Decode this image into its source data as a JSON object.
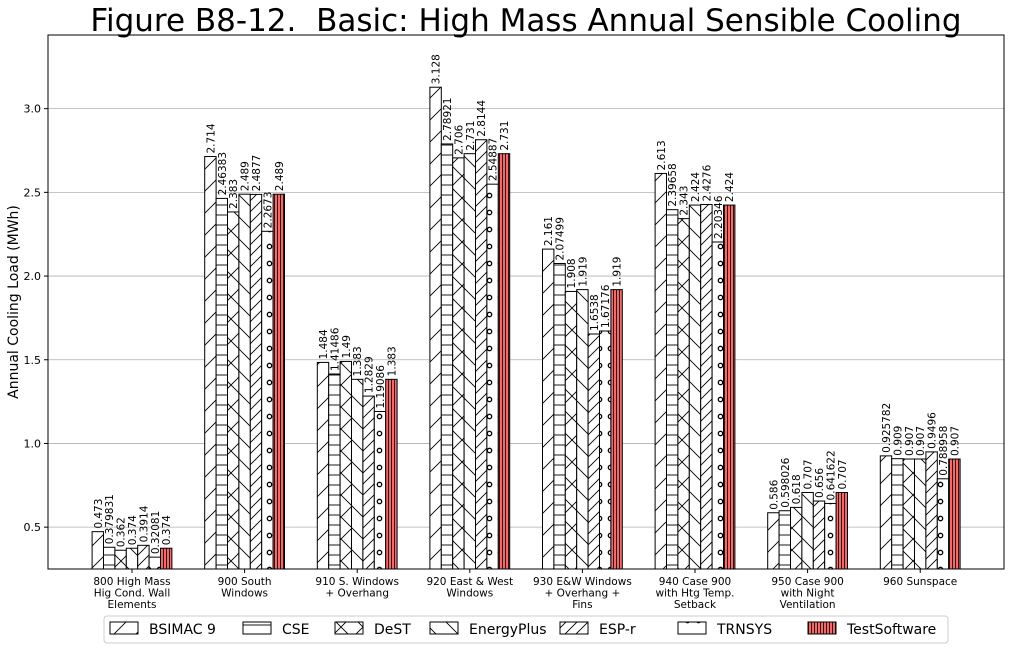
{
  "chart_data": {
    "type": "bar",
    "title": "Figure B8-12.  Basic: High Mass Annual Sensible Cooling",
    "xlabel": "",
    "ylabel": "Annual Cooling Load (MWh)",
    "ylim": [
      0.25,
      3.44
    ],
    "yticks": [
      0.5,
      1.0,
      1.5,
      2.0,
      2.5,
      3.0
    ],
    "ytick_labels": [
      "0.5",
      "1.0",
      "1.5",
      "2.0",
      "2.5",
      "3.0"
    ],
    "grid": "y-major",
    "legend_position": "bottom",
    "categories": [
      [
        "800 High Mass",
        "Hig Cond. Wall",
        "Elements"
      ],
      [
        "900 South",
        "Windows"
      ],
      [
        "910 S. Windows",
        "+ Overhang"
      ],
      [
        "920 East & West",
        "Windows"
      ],
      [
        "930 E&W Windows",
        "+ Overhang +",
        "Fins"
      ],
      [
        "940 Case 900",
        "with Htg Temp.",
        "Setback"
      ],
      [
        "950 Case 900",
        "with Night",
        "Ventilation"
      ],
      [
        "960 Sunspace"
      ]
    ],
    "series": [
      {
        "name": "BSIMAC 9",
        "pattern": "diag-fwd",
        "fill": "#ffffff",
        "values": [
          0.473,
          2.714,
          1.484,
          3.128,
          2.161,
          2.613,
          0.586,
          0.925782
        ],
        "labels": [
          "0.473",
          "2.714",
          "1.484",
          "3.128",
          "2.161",
          "2.613",
          "0.586",
          "0.925782"
        ]
      },
      {
        "name": "CSE",
        "pattern": "horizontal",
        "fill": "#ffffff",
        "values": [
          0.379831,
          2.46383,
          1.41486,
          2.78921,
          2.07499,
          2.39658,
          0.598026,
          0.909
        ],
        "labels": [
          "0.379831",
          "2.46383",
          "1.41486",
          "2.78921",
          "2.07499",
          "2.39658",
          "0.598026",
          "0.909"
        ]
      },
      {
        "name": "DeST",
        "pattern": "cross",
        "fill": "#ffffff",
        "values": [
          0.362,
          2.383,
          1.49,
          2.706,
          1.908,
          2.343,
          0.618,
          0.907
        ],
        "labels": [
          "0.362",
          "2.383",
          "1.49",
          "2.706",
          "1.908",
          "2.343",
          "0.618",
          "0.907"
        ]
      },
      {
        "name": "EnergyPlus",
        "pattern": "diag-back",
        "fill": "#ffffff",
        "values": [
          0.374,
          2.489,
          1.383,
          2.731,
          1.919,
          2.424,
          0.707,
          0.907
        ],
        "labels": [
          "0.374",
          "2.489",
          "1.383",
          "2.731",
          "1.919",
          "2.424",
          "0.707",
          "0.907"
        ]
      },
      {
        "name": "ESP-r",
        "pattern": "diag-dense",
        "fill": "#ffffff",
        "values": [
          0.3914,
          2.4877,
          1.2829,
          2.8144,
          1.6538,
          2.4276,
          0.656,
          0.9496
        ],
        "labels": [
          "0.3914",
          "2.4877",
          "1.2829",
          "2.8144",
          "1.6538",
          "2.4276",
          "0.656",
          "0.9496"
        ]
      },
      {
        "name": "TRNSYS",
        "pattern": "circles",
        "fill": "#ffffff",
        "values": [
          0.32081,
          2.2673,
          1.19086,
          2.54887,
          1.67176,
          2.20346,
          0.641622,
          0.788958
        ],
        "labels": [
          "0.32081",
          "2.2673",
          "1.19086",
          "2.54887",
          "1.67176",
          "2.20346",
          "0.641622",
          "0.788958"
        ]
      },
      {
        "name": "TestSoftware",
        "pattern": "vertical",
        "fill": "#f46a6a",
        "values": [
          0.374,
          2.489,
          1.383,
          2.731,
          1.919,
          2.424,
          0.707,
          0.907
        ],
        "labels": [
          "0.374",
          "2.489",
          "1.383",
          "2.731",
          "1.919",
          "2.424",
          "0.707",
          "0.907"
        ]
      }
    ]
  }
}
